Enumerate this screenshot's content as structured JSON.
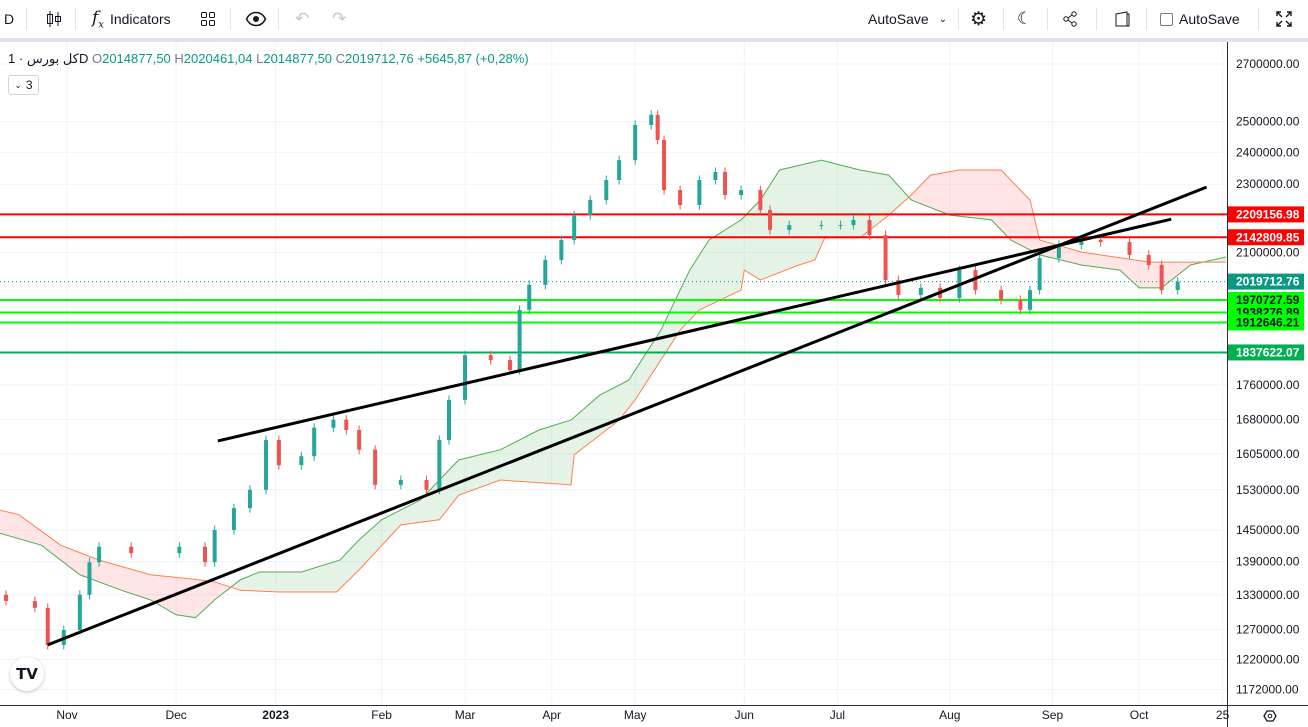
{
  "toolbar": {
    "symbol_short": "D",
    "indicators_label": "Indicators",
    "autosave_dropdown_label": "AutoSave",
    "autosave_checkbox_label": "AutoSave"
  },
  "legend": {
    "symbol": "کل بورس",
    "interval": "· 1D",
    "open_key": "O",
    "open": "2014877,50",
    "high_key": "H",
    "high": "2020461,04",
    "low_key": "L",
    "low": "2014877,50",
    "close_key": "C",
    "close": "2019712,76",
    "change": "+5645,87 (+0,28%)",
    "indicators_count": "3"
  },
  "logo_text": "TV",
  "colors": {
    "up": "#26a69a",
    "down": "#ef5350",
    "spanA": "#4caf50",
    "spanB": "#ff7f50",
    "red_line": "#ff0000",
    "lime_line": "#00ff00",
    "green_line": "#00b050",
    "current": "#089981"
  },
  "chart_data": {
    "type": "candlestick",
    "scale": "log",
    "time_unit": "days since 2022-11-01 (bar time)",
    "ylim": [
      1150000,
      2750000
    ],
    "y_ticks": [
      "2700000.00",
      "2500000.00",
      "2400000.00",
      "2300000.00",
      "2100000.00",
      "1760000.00",
      "1680000.00",
      "1605000.00",
      "1530000.00",
      "1450000.00",
      "1390000.00",
      "1330000.00",
      "1270000.00",
      "1220000.00",
      "1172000.00"
    ],
    "x_ticks": [
      {
        "label": "Nov",
        "t": 0
      },
      {
        "label": "Dec",
        "t": 34
      },
      {
        "label": "2023",
        "t": 65,
        "bold": true
      },
      {
        "label": "Feb",
        "t": 98
      },
      {
        "label": "Mar",
        "t": 124
      },
      {
        "label": "Apr",
        "t": 151
      },
      {
        "label": "May",
        "t": 177
      },
      {
        "label": "Jun",
        "t": 211
      },
      {
        "label": "Jul",
        "t": 240
      },
      {
        "label": "Aug",
        "t": 275
      },
      {
        "label": "Sep",
        "t": 307
      },
      {
        "label": "Oct",
        "t": 334
      },
      {
        "label": "25",
        "t": 360
      }
    ],
    "first_open": 1330000,
    "candles_t_close": [
      [
        -19,
        1319000
      ],
      [
        -10,
        1307000
      ],
      [
        -6,
        1244000
      ],
      [
        -1,
        1269000
      ],
      [
        4,
        1330000
      ],
      [
        7,
        1389000
      ],
      [
        10,
        1418000
      ],
      [
        20,
        1406000
      ],
      [
        35,
        1418000
      ],
      [
        43,
        1389000
      ],
      [
        46,
        1450000
      ],
      [
        52,
        1493000
      ],
      [
        57,
        1530000
      ],
      [
        62,
        1635000
      ],
      [
        66,
        1581000
      ],
      [
        73,
        1600000
      ],
      [
        77,
        1662000
      ],
      [
        83,
        1680000
      ],
      [
        87,
        1657000
      ],
      [
        91,
        1614000
      ],
      [
        96,
        1540000
      ],
      [
        104,
        1550000
      ],
      [
        112,
        1530000
      ],
      [
        116,
        1635000
      ],
      [
        119,
        1725000
      ],
      [
        124,
        1831000
      ],
      [
        132,
        1819000
      ],
      [
        138,
        1795000
      ],
      [
        141,
        1945000
      ],
      [
        144,
        2011000
      ],
      [
        149,
        2079000
      ],
      [
        154,
        2135000
      ],
      [
        158,
        2207000
      ],
      [
        163,
        2252000
      ],
      [
        168,
        2313000
      ],
      [
        172,
        2375000
      ],
      [
        177,
        2489000
      ],
      [
        182,
        2523000
      ],
      [
        184,
        2440000
      ],
      [
        186,
        2282000
      ],
      [
        191,
        2237000
      ],
      [
        197,
        2313000
      ],
      [
        202,
        2338000
      ],
      [
        205,
        2267000
      ],
      [
        210,
        2282000
      ],
      [
        216,
        2222000
      ],
      [
        219,
        2164000
      ],
      [
        225,
        2178000
      ],
      [
        235,
        2178000
      ],
      [
        241,
        2178000
      ],
      [
        245,
        2193000
      ],
      [
        250,
        2149000
      ],
      [
        255,
        2024000
      ],
      [
        259,
        1984000
      ],
      [
        266,
        2003000
      ],
      [
        272,
        1976000
      ],
      [
        278,
        2051000
      ],
      [
        283,
        1997000
      ],
      [
        291,
        1971000
      ],
      [
        297,
        1945000
      ],
      [
        300,
        1997000
      ],
      [
        303,
        2084000
      ],
      [
        309,
        2121000
      ],
      [
        316,
        2135000
      ],
      [
        322,
        2129000
      ],
      [
        331,
        2093000
      ],
      [
        337,
        2065000
      ],
      [
        341,
        1997000
      ],
      [
        346,
        2019712.76
      ]
    ],
    "ichimoku_span_a": [
      [
        -21,
        1444000
      ],
      [
        -8,
        1421000
      ],
      [
        4,
        1366000
      ],
      [
        17,
        1338000
      ],
      [
        26,
        1321000
      ],
      [
        34,
        1295000
      ],
      [
        40,
        1290000
      ],
      [
        46,
        1321000
      ],
      [
        54,
        1357000
      ],
      [
        60,
        1371000
      ],
      [
        73,
        1371000
      ],
      [
        85,
        1393000
      ],
      [
        91,
        1431000
      ],
      [
        98,
        1470000
      ],
      [
        110,
        1509000
      ],
      [
        122,
        1592000
      ],
      [
        135,
        1614000
      ],
      [
        147,
        1657000
      ],
      [
        157,
        1679000
      ],
      [
        166,
        1736000
      ],
      [
        175,
        1771000
      ],
      [
        185,
        1893000
      ],
      [
        194,
        2051000
      ],
      [
        200,
        2135000
      ],
      [
        210,
        2193000
      ],
      [
        216,
        2252000
      ],
      [
        222,
        2344000
      ],
      [
        235,
        2375000
      ],
      [
        247,
        2344000
      ],
      [
        256,
        2328000
      ],
      [
        263,
        2252000
      ],
      [
        275,
        2207000
      ],
      [
        288,
        2193000
      ],
      [
        294,
        2135000
      ],
      [
        303,
        2093000
      ],
      [
        316,
        2065000
      ],
      [
        328,
        2051000
      ],
      [
        334,
        2003000
      ],
      [
        341,
        2003000
      ],
      [
        350,
        2065000
      ],
      [
        361,
        2087000
      ]
    ],
    "ichimoku_span_b": [
      [
        -21,
        1489000
      ],
      [
        -15,
        1480000
      ],
      [
        -2,
        1421000
      ],
      [
        10,
        1393000
      ],
      [
        26,
        1366000
      ],
      [
        41,
        1357000
      ],
      [
        46,
        1353000
      ],
      [
        54,
        1338000
      ],
      [
        66,
        1335000
      ],
      [
        84,
        1335000
      ],
      [
        91,
        1375000
      ],
      [
        104,
        1460000
      ],
      [
        116,
        1470000
      ],
      [
        122,
        1519000
      ],
      [
        135,
        1550000
      ],
      [
        157,
        1540000
      ],
      [
        158,
        1603000
      ],
      [
        172,
        1679000
      ],
      [
        177,
        1725000
      ],
      [
        191,
        1893000
      ],
      [
        197,
        1945000
      ],
      [
        210,
        1997000
      ],
      [
        211,
        2051000
      ],
      [
        216,
        2024000
      ],
      [
        228,
        2065000
      ],
      [
        233,
        2079000
      ],
      [
        236,
        2141000
      ],
      [
        247,
        2141000
      ],
      [
        256,
        2207000
      ],
      [
        263,
        2267000
      ],
      [
        269,
        2328000
      ],
      [
        278,
        2344000
      ],
      [
        291,
        2344000
      ],
      [
        300,
        2252000
      ],
      [
        303,
        2135000
      ],
      [
        316,
        2101000
      ],
      [
        337,
        2073000
      ],
      [
        361,
        2073000
      ]
    ],
    "trend_lines": [
      {
        "name": "lower-trendline",
        "from": [
          -6,
          1244000
        ],
        "to": [
          355,
          2291000
        ]
      },
      {
        "name": "upper-trendline",
        "from": [
          47,
          1633000
        ],
        "to": [
          344,
          2195000
        ]
      }
    ],
    "horizontal_levels": [
      {
        "price": 2209156.98,
        "label": "2209156.98",
        "kind": "red"
      },
      {
        "price": 2142809.85,
        "label": "2142809.85",
        "kind": "red"
      },
      {
        "price": 1970727.59,
        "label": "1970727.59",
        "kind": "lime"
      },
      {
        "price": 1938276.89,
        "label": "1938276.89",
        "kind": "lime"
      },
      {
        "price": 1912646.21,
        "label": "1912646.21",
        "kind": "lime"
      },
      {
        "price": 1837622.07,
        "label": "1837622.07",
        "kind": "green"
      }
    ],
    "current_price": {
      "price": 2019712.76,
      "label": "2019712.76"
    }
  }
}
